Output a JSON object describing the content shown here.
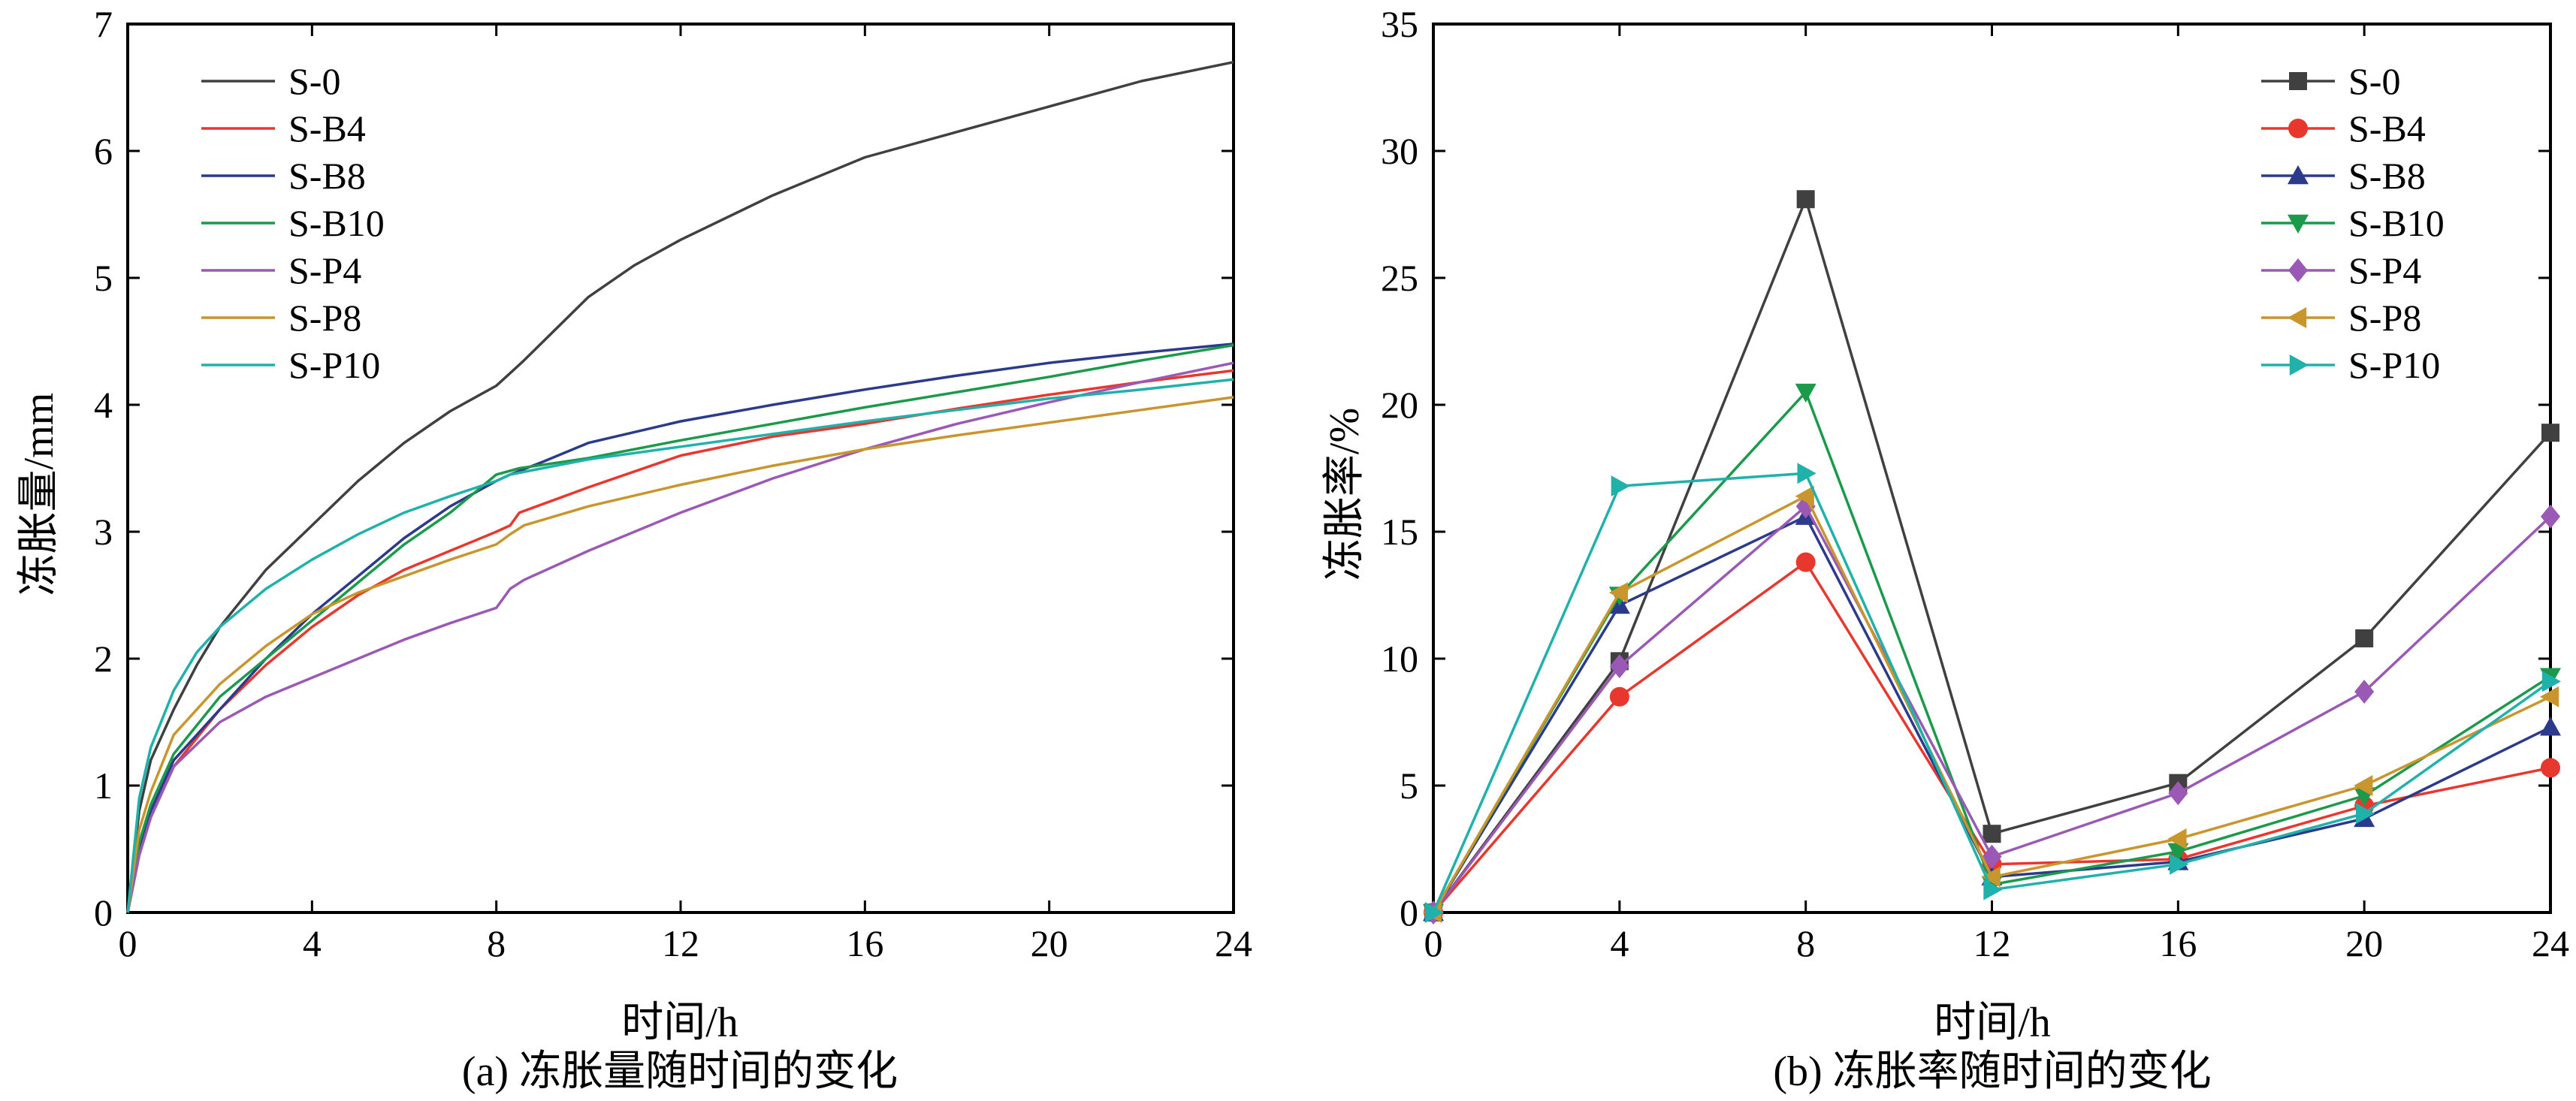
{
  "chart_data": [
    {
      "id": "a",
      "type": "line",
      "caption": "(a) 冻胀量随时间的变化",
      "title": "",
      "xlabel": "时间/h",
      "ylabel": "冻胀量/mm",
      "xlim": [
        0,
        24
      ],
      "ylim": [
        0,
        7
      ],
      "xticks": [
        0,
        4,
        8,
        12,
        16,
        20,
        24
      ],
      "yticks": [
        0,
        1,
        2,
        3,
        4,
        5,
        6,
        7
      ],
      "grid": false,
      "legend_position": "top-left",
      "series": [
        {
          "name": "S-0",
          "color": "#404040",
          "x": [
            0,
            0.25,
            0.5,
            1,
            1.5,
            2,
            3,
            4,
            5,
            6,
            7,
            8,
            8.3,
            8.6,
            10,
            11,
            12,
            14,
            16,
            18,
            20,
            22,
            24
          ],
          "y": [
            0,
            0.8,
            1.2,
            1.6,
            1.95,
            2.25,
            2.7,
            3.05,
            3.4,
            3.7,
            3.95,
            4.15,
            4.25,
            4.35,
            4.85,
            5.1,
            5.3,
            5.65,
            5.95,
            6.15,
            6.35,
            6.55,
            6.7
          ]
        },
        {
          "name": "S-B4",
          "color": "#e8382e",
          "x": [
            0,
            0.25,
            0.5,
            1,
            2,
            3,
            4,
            5,
            6,
            7,
            8,
            8.3,
            8.5,
            10,
            12,
            14,
            16,
            18,
            20,
            22,
            24
          ],
          "y": [
            0,
            0.45,
            0.75,
            1.15,
            1.6,
            1.95,
            2.25,
            2.5,
            2.7,
            2.85,
            3.0,
            3.05,
            3.15,
            3.35,
            3.6,
            3.75,
            3.85,
            3.97,
            4.08,
            4.18,
            4.27
          ]
        },
        {
          "name": "S-B8",
          "color": "#2c3a8c",
          "x": [
            0,
            0.25,
            0.5,
            1,
            2,
            3,
            4,
            5,
            6,
            7,
            8,
            8.3,
            9,
            10,
            12,
            14,
            16,
            18,
            20,
            22,
            24
          ],
          "y": [
            0,
            0.5,
            0.8,
            1.2,
            1.6,
            2.0,
            2.35,
            2.65,
            2.95,
            3.2,
            3.4,
            3.45,
            3.55,
            3.7,
            3.87,
            4.0,
            4.12,
            4.23,
            4.33,
            4.41,
            4.48
          ]
        },
        {
          "name": "S-B10",
          "color": "#1a9a4a",
          "x": [
            0,
            0.25,
            0.5,
            1,
            2,
            3,
            4,
            5,
            6,
            7,
            7.5,
            8,
            8.5,
            10,
            12,
            14,
            16,
            18,
            20,
            22,
            24
          ],
          "y": [
            0,
            0.55,
            0.85,
            1.25,
            1.7,
            2.0,
            2.3,
            2.6,
            2.9,
            3.15,
            3.3,
            3.45,
            3.5,
            3.58,
            3.72,
            3.85,
            3.98,
            4.1,
            4.22,
            4.35,
            4.47
          ]
        },
        {
          "name": "S-P4",
          "color": "#9b59b6",
          "x": [
            0,
            0.25,
            0.5,
            1,
            2,
            3,
            4,
            5,
            6,
            7,
            8,
            8.3,
            8.6,
            10,
            12,
            14,
            16,
            18,
            20,
            22,
            24
          ],
          "y": [
            0,
            0.45,
            0.75,
            1.15,
            1.5,
            1.7,
            1.85,
            2.0,
            2.15,
            2.28,
            2.4,
            2.55,
            2.62,
            2.85,
            3.15,
            3.42,
            3.65,
            3.85,
            4.02,
            4.18,
            4.33
          ]
        },
        {
          "name": "S-P8",
          "color": "#c8962c",
          "x": [
            0,
            0.25,
            0.5,
            1,
            2,
            3,
            4,
            5,
            6,
            7,
            8,
            8.3,
            8.6,
            10,
            12,
            14,
            16,
            18,
            20,
            22,
            24
          ],
          "y": [
            0,
            0.65,
            0.95,
            1.4,
            1.8,
            2.1,
            2.35,
            2.52,
            2.65,
            2.78,
            2.9,
            2.98,
            3.05,
            3.2,
            3.37,
            3.52,
            3.65,
            3.76,
            3.86,
            3.96,
            4.06
          ]
        },
        {
          "name": "S-P10",
          "color": "#20b2aa",
          "x": [
            0,
            0.25,
            0.5,
            1,
            1.5,
            2,
            3,
            4,
            5,
            6,
            7,
            8,
            8.3,
            9,
            10,
            12,
            14,
            16,
            18,
            20,
            22,
            24
          ],
          "y": [
            0,
            0.9,
            1.3,
            1.75,
            2.05,
            2.25,
            2.55,
            2.78,
            2.98,
            3.15,
            3.28,
            3.4,
            3.45,
            3.5,
            3.57,
            3.67,
            3.77,
            3.87,
            3.96,
            4.05,
            4.12,
            4.2
          ]
        }
      ]
    },
    {
      "id": "b",
      "type": "line",
      "caption": "(b) 冻胀率随时间的变化",
      "title": "",
      "xlabel": "时间/h",
      "ylabel": "冻胀率/%",
      "xlim": [
        0,
        24
      ],
      "ylim": [
        0,
        35
      ],
      "xticks": [
        0,
        4,
        8,
        12,
        16,
        20,
        24
      ],
      "yticks": [
        0,
        5,
        10,
        15,
        20,
        25,
        30,
        35
      ],
      "grid": false,
      "legend_position": "top-right",
      "x": [
        0,
        4,
        8,
        12,
        16,
        20,
        24
      ],
      "series": [
        {
          "name": "S-0",
          "color": "#404040",
          "marker": "square",
          "values": [
            0,
            9.9,
            28.1,
            3.1,
            5.1,
            10.8,
            18.9
          ]
        },
        {
          "name": "S-B4",
          "color": "#e8382e",
          "marker": "circle",
          "values": [
            0,
            8.5,
            13.8,
            1.9,
            2.1,
            4.2,
            5.7
          ]
        },
        {
          "name": "S-B8",
          "color": "#2c3a8c",
          "marker": "triangle-up",
          "values": [
            0,
            12.1,
            15.6,
            1.4,
            2.0,
            3.7,
            7.3
          ]
        },
        {
          "name": "S-B10",
          "color": "#1a9a4a",
          "marker": "triangle-down",
          "values": [
            0,
            12.5,
            20.5,
            1.1,
            2.4,
            4.6,
            9.3
          ]
        },
        {
          "name": "S-P4",
          "color": "#9b59b6",
          "marker": "diamond",
          "values": [
            0,
            9.7,
            16.0,
            2.2,
            4.7,
            8.7,
            15.6
          ]
        },
        {
          "name": "S-P8",
          "color": "#c8962c",
          "marker": "triangle-left",
          "values": [
            0,
            12.6,
            16.4,
            1.4,
            2.9,
            5.0,
            8.5
          ]
        },
        {
          "name": "S-P10",
          "color": "#20b2aa",
          "marker": "triangle-right",
          "values": [
            0,
            16.8,
            17.3,
            0.9,
            1.9,
            3.9,
            9.1
          ]
        }
      ]
    }
  ]
}
